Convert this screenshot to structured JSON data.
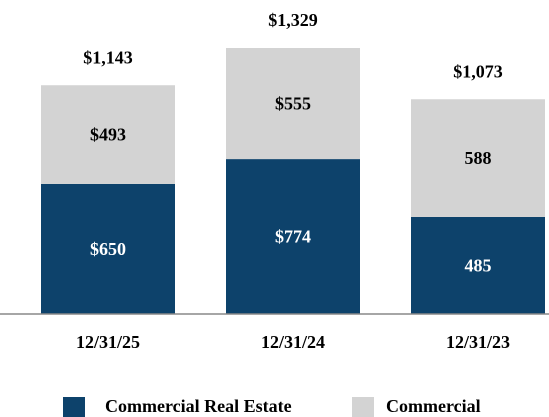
{
  "chart_data": {
    "type": "stacked_bar",
    "categories": [
      "12/31/25",
      "12/31/24",
      "12/31/23"
    ],
    "series": [
      {
        "name": "Commercial Real Estate",
        "color": "#0d426b",
        "values": [
          650,
          774,
          485
        ],
        "value_labels": [
          "$650",
          "$774",
          "485"
        ]
      },
      {
        "name": "Commercial",
        "color": "#d3d3d3",
        "values": [
          493,
          555,
          588
        ],
        "value_labels": [
          "$493",
          "$555",
          "588"
        ]
      }
    ],
    "totals": [
      1143,
      1329,
      1073
    ],
    "total_labels": [
      "$1,143",
      "$1,329",
      "$1,073"
    ]
  }
}
